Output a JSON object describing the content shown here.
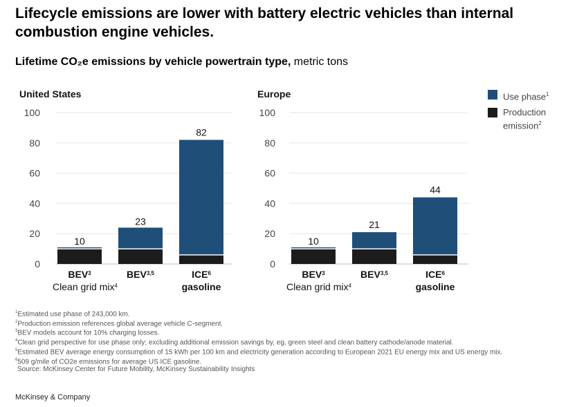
{
  "headline": "Lifecycle emissions are lower with battery electric vehicles than internal combustion engine vehicles.",
  "subtitle": {
    "bold": "Lifetime CO₂e emissions by vehicle powertrain type,",
    "units": "metric tons"
  },
  "legend": [
    {
      "label": "Use phase",
      "sup": "1",
      "color": "#1f4e79"
    },
    {
      "label": "Production emission",
      "sup": "2",
      "color": "#1c1c1c"
    }
  ],
  "chart_data": [
    {
      "type": "bar",
      "stacked": true,
      "title": "United States",
      "categories": [
        {
          "label": "BEV",
          "sup": "3",
          "sublabel": "Clean grid mix",
          "sub_sup": "4"
        },
        {
          "label": "BEV",
          "sup": "3,5",
          "sublabel": ""
        },
        {
          "label": "ICE",
          "sup": "6",
          "sublabel": "gasoline"
        }
      ],
      "series": [
        {
          "name": "Production emission",
          "values": [
            10,
            10,
            6
          ]
        },
        {
          "name": "Use phase",
          "values": [
            1,
            14,
            76
          ]
        }
      ],
      "totals": [
        10,
        23,
        82
      ],
      "ylim": [
        0,
        100
      ],
      "yticks": [
        0,
        20,
        40,
        60,
        80,
        100
      ],
      "grid": true
    },
    {
      "type": "bar",
      "stacked": true,
      "title": "Europe",
      "categories": [
        {
          "label": "BEV",
          "sup": "3",
          "sublabel": "Clean grid mix",
          "sub_sup": "4"
        },
        {
          "label": "BEV",
          "sup": "3,5",
          "sublabel": ""
        },
        {
          "label": "ICE",
          "sup": "6",
          "sublabel": "gasoline"
        }
      ],
      "series": [
        {
          "name": "Production emission",
          "values": [
            10,
            10,
            6
          ]
        },
        {
          "name": "Use phase",
          "values": [
            1,
            11,
            38
          ]
        }
      ],
      "totals": [
        10,
        21,
        44
      ],
      "ylim": [
        0,
        100
      ],
      "yticks": [
        0,
        20,
        40,
        60,
        80,
        100
      ],
      "grid": true
    }
  ],
  "footnotes": [
    {
      "sup": "1",
      "text": "Estimated use phase of 243,000 km."
    },
    {
      "sup": "2",
      "text": "Production emission references global average vehicle C-segment."
    },
    {
      "sup": "3",
      "text": "BEV models account for 10% charging losses."
    },
    {
      "sup": "4",
      "text": "Clean grid perspective for use phase only; excluding additional emission savings by, eg, green steel and clean battery cathode/anode material."
    },
    {
      "sup": "5",
      "text": "Estimated BEV average energy consumption of 15 kWh per 100 km and electricity generation according to European 2021 EU energy mix and US energy mix."
    },
    {
      "sup": "6",
      "text": "509 g/mile of CO2e emissions for average US ICE gasoline."
    }
  ],
  "source": "Source: McKinsey Center for Future Mobility, McKinsey Sustainability Insights",
  "brand": "McKinsey & Company"
}
